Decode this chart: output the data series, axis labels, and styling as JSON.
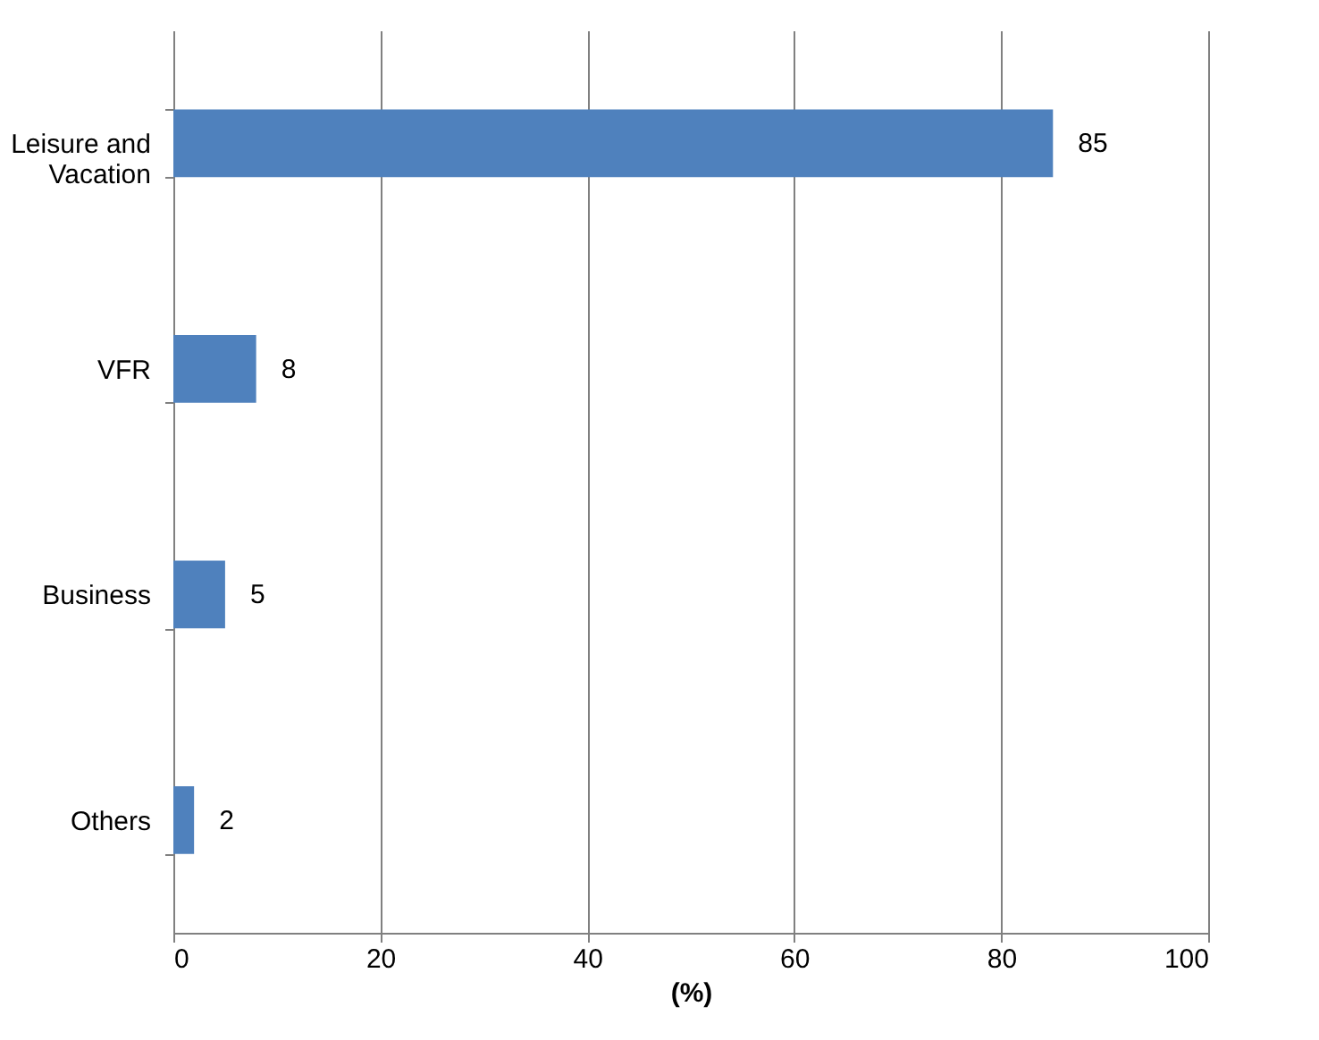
{
  "chart_data": {
    "type": "bar",
    "orientation": "horizontal",
    "categories": [
      "Leisure and Vacation",
      "VFR",
      "Business",
      "Others"
    ],
    "values": [
      85,
      8,
      5,
      2
    ],
    "color": "#4f81bd",
    "xlabel": "(%)",
    "xlim": [
      0,
      100
    ],
    "xticks": [
      0,
      20,
      40,
      60,
      80,
      100
    ],
    "grid": "x",
    "data_labels": true
  }
}
